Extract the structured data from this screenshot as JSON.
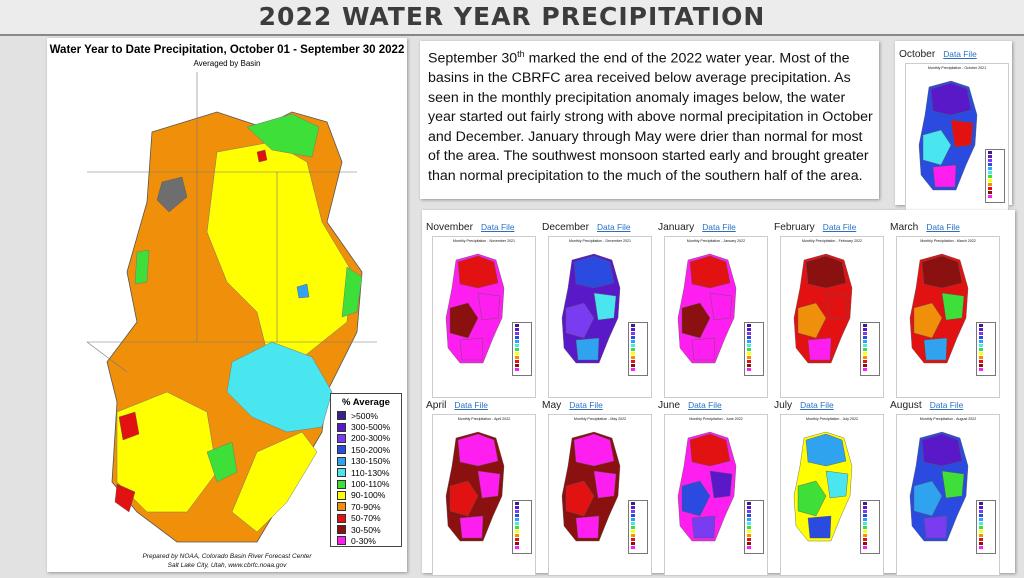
{
  "page": {
    "title": "2022 WATER YEAR PRECIPITATION"
  },
  "main_map": {
    "title": "Water Year to Date Precipitation, October 01  - September 30 2022",
    "subtitle": "Averaged by Basin",
    "credit_line1": "Prepared by NOAA, Colorado Basin River Forecast Center",
    "credit_line2": "Salt Lake City, Utah, www.cbrfc.noaa.gov"
  },
  "legend": {
    "title": "% Average",
    "items": [
      {
        "label": ">500%",
        "color": "#3b1f8a"
      },
      {
        "label": "300-500%",
        "color": "#5a19c8"
      },
      {
        "label": "200-300%",
        "color": "#7a3cf0"
      },
      {
        "label": "150-200%",
        "color": "#2b4be0"
      },
      {
        "label": "130-150%",
        "color": "#2fa3ef"
      },
      {
        "label": "110-130%",
        "color": "#49e6f0"
      },
      {
        "label": "100-110%",
        "color": "#3fdf3a"
      },
      {
        "label": "90-100%",
        "color": "#ffff00"
      },
      {
        "label": "70-90%",
        "color": "#f0900a"
      },
      {
        "label": "50-70%",
        "color": "#e31212"
      },
      {
        "label": "30-50%",
        "color": "#8b1010"
      },
      {
        "label": "0-30%",
        "color": "#ff1ef0"
      }
    ]
  },
  "description": {
    "line_start": "September 30",
    "sup": "th",
    "line_rest": " marked the end of the 2022 water year. Most of the basins in the CBRFC area received below average precipitation. As seen in the monthly precipitation anomaly images below, the water year started out fairly strong with above normal precipitation in October and December. January through May were drier than normal for most of the area. The southwest monsoon started early and brought greater than normal precipitation to the much of the southern half of the area."
  },
  "data_file_label": "Data File",
  "months": [
    {
      "name": "October",
      "map_title": "Monthly Precipitation - October 2021",
      "colors": [
        "#2b4be0",
        "#5a19c8",
        "#49e6f0",
        "#e31212",
        "#ff1ef0"
      ]
    },
    {
      "name": "November",
      "map_title": "Monthly Precipitation - November 2021",
      "colors": [
        "#ff1ef0",
        "#e31212",
        "#8b1010",
        "#ff1ef0",
        "#ff1ef0"
      ]
    },
    {
      "name": "December",
      "map_title": "Monthly Precipitation - December 2021",
      "colors": [
        "#5a19c8",
        "#2b4be0",
        "#7a3cf0",
        "#49e6f0",
        "#2fa3ef"
      ]
    },
    {
      "name": "January",
      "map_title": "Monthly Precipitation - January 2022",
      "colors": [
        "#ff1ef0",
        "#e31212",
        "#8b1010",
        "#ff1ef0",
        "#ff1ef0"
      ]
    },
    {
      "name": "February",
      "map_title": "Monthly Precipitation - February 2022",
      "colors": [
        "#e31212",
        "#8b1010",
        "#f0900a",
        "#e31212",
        "#ff1ef0"
      ]
    },
    {
      "name": "March",
      "map_title": "Monthly Precipitation - March 2022",
      "colors": [
        "#e31212",
        "#8b1010",
        "#f0900a",
        "#3fdf3a",
        "#2fa3ef"
      ]
    },
    {
      "name": "April",
      "map_title": "Monthly Precipitation - April 2022",
      "colors": [
        "#8b1010",
        "#ff1ef0",
        "#e31212",
        "#ff1ef0",
        "#ff1ef0"
      ]
    },
    {
      "name": "May",
      "map_title": "Monthly Precipitation - May 2022",
      "colors": [
        "#8b1010",
        "#ff1ef0",
        "#e31212",
        "#ff1ef0",
        "#ff1ef0"
      ]
    },
    {
      "name": "June",
      "map_title": "Monthly Precipitation - June 2022",
      "colors": [
        "#ff1ef0",
        "#e31212",
        "#2b4be0",
        "#5a19c8",
        "#7a3cf0"
      ]
    },
    {
      "name": "July",
      "map_title": "Monthly Precipitation - July 2022",
      "colors": [
        "#ffff00",
        "#2fa3ef",
        "#3fdf3a",
        "#49e6f0",
        "#2b4be0"
      ]
    },
    {
      "name": "August",
      "map_title": "Monthly Precipitation - August 2022",
      "colors": [
        "#2b4be0",
        "#5a19c8",
        "#2fa3ef",
        "#3fdf3a",
        "#7a3cf0"
      ]
    }
  ]
}
